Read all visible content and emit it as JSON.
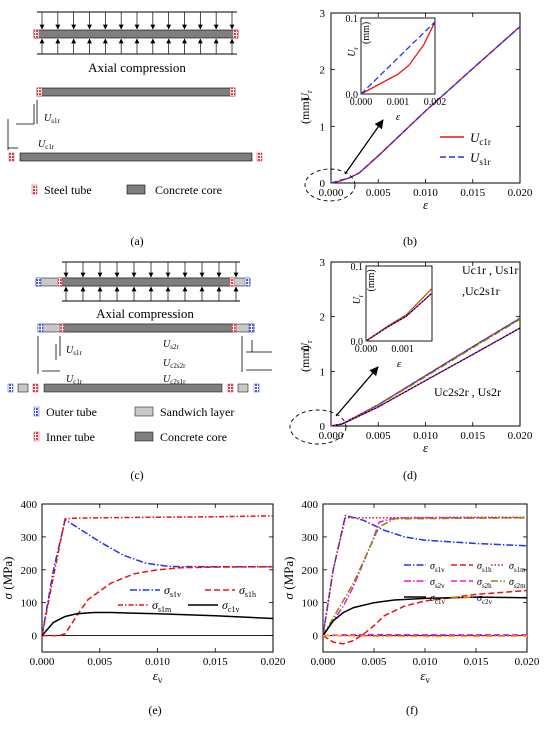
{
  "colors": {
    "steel": "#e33a4a",
    "outer_tube": "#4a5bd6",
    "sandwich": "#c8c8c8",
    "concrete": "#7f7f7f",
    "red": "#ee1111",
    "blue": "#2233ee",
    "magenta": "#ee11ee",
    "olive": "#888800",
    "orange": "#ffaa00",
    "black": "#000000"
  },
  "panel_a": {
    "caption": "(a)",
    "title": "Axial compression",
    "label_s1r": "Us1r",
    "label_c1r": "Uc1r",
    "legend_steel": "Steel tube",
    "legend_concrete": "Concrete core"
  },
  "panel_c": {
    "caption": "(c)",
    "title": "Axial compression",
    "label_s1r": "Us1r",
    "label_c1r": "Uc1r",
    "label_s2r": "Us2r",
    "label_c2s2r": "Uc2s2r",
    "label_c2s1r": "Uc2s1r",
    "legend_outer": "Outer tube",
    "legend_inner": "Inner tube",
    "legend_sandwich": "Sandwich layer",
    "legend_concrete": "Concrete core"
  },
  "chart_data": [
    {
      "id": "b",
      "type": "line",
      "caption": "(b)",
      "xlabel": "ε",
      "ylabel": "Ur (mm)",
      "xlim": [
        0,
        0.02
      ],
      "ylim": [
        0,
        3
      ],
      "xticks": [
        "0.000",
        "0.005",
        "0.010",
        "0.015",
        "0.020"
      ],
      "yticks": [
        "0",
        "1",
        "2",
        "3"
      ],
      "legend": "bottom-right",
      "series": [
        {
          "name": "Uc1r",
          "color": "#ee1111",
          "dash": "solid",
          "x": [
            0,
            0.001,
            0.002,
            0.003,
            0.005,
            0.01,
            0.015,
            0.02
          ],
          "y": [
            0,
            0.035,
            0.095,
            0.18,
            0.48,
            1.27,
            2.02,
            2.76
          ]
        },
        {
          "name": "Us1r",
          "color": "#2233ee",
          "dash": "dashed",
          "x": [
            0,
            0.001,
            0.002,
            0.003,
            0.005,
            0.01,
            0.015,
            0.02
          ],
          "y": [
            0,
            0.048,
            0.095,
            0.18,
            0.48,
            1.27,
            2.02,
            2.76
          ]
        }
      ],
      "inset": {
        "xlabel": "ε",
        "ylabel": "Ur (mm)",
        "xlim": [
          0,
          0.002
        ],
        "ylim": [
          0,
          0.1
        ],
        "xticks": [
          "0.000",
          "0.001",
          "0.002"
        ],
        "yticks": [
          "0.0",
          "0.1"
        ],
        "series": [
          {
            "name": "Uc1r",
            "x": [
              0,
              0.0005,
              0.001,
              0.0013,
              0.0017,
              0.002
            ],
            "y": [
              0,
              0.013,
              0.026,
              0.038,
              0.065,
              0.095
            ]
          },
          {
            "name": "Us1r",
            "x": [
              0,
              0.002
            ],
            "y": [
              0,
              0.095
            ]
          }
        ]
      }
    },
    {
      "id": "d",
      "type": "line",
      "caption": "(d)",
      "xlabel": "ε",
      "ylabel": "Ur (mm)",
      "xlim": [
        0,
        0.02
      ],
      "ylim": [
        0,
        3
      ],
      "xticks": [
        "0.000",
        "0.005",
        "0.010",
        "0.015",
        "0.020"
      ],
      "yticks": [
        "0",
        "1",
        "2",
        "3"
      ],
      "annotation_upper_1": "Uc1r , Us1r",
      "annotation_upper_2": ",Uc2s1r",
      "annotation_lower": "Uc2s2r , Us2r",
      "series": [
        {
          "name": "Uc1r",
          "color": "#ee1111",
          "dash": "solid",
          "x": [
            0,
            0.0012,
            0.005,
            0.01,
            0.015,
            0.02
          ],
          "y": [
            0,
            0.04,
            0.39,
            0.92,
            1.45,
            1.97
          ]
        },
        {
          "name": "Us1r",
          "color": "#2233ee",
          "dash": "dashed",
          "x": [
            0,
            0.0012,
            0.005,
            0.01,
            0.015,
            0.02
          ],
          "y": [
            0,
            0.04,
            0.39,
            0.92,
            1.45,
            1.97
          ]
        },
        {
          "name": "Uc2s1r",
          "color": "#888800",
          "dash": "dashdot",
          "x": [
            0,
            0.0012,
            0.005,
            0.01,
            0.015,
            0.02
          ],
          "y": [
            0,
            0.04,
            0.38,
            0.9,
            1.43,
            1.95
          ]
        },
        {
          "name": "Uc2s2r",
          "color": "#000000",
          "dash": "solid",
          "x": [
            0,
            0.0012,
            0.005,
            0.01,
            0.015,
            0.02
          ],
          "y": [
            0,
            0.036,
            0.35,
            0.83,
            1.31,
            1.79
          ]
        },
        {
          "name": "Us2r",
          "color": "#ee11ee",
          "dash": "dotted",
          "x": [
            0,
            0.0012,
            0.005,
            0.01,
            0.015,
            0.02
          ],
          "y": [
            0,
            0.036,
            0.35,
            0.83,
            1.31,
            1.79
          ]
        }
      ],
      "inset": {
        "xlabel": "ε",
        "ylabel": "Ur (mm)",
        "xlim": [
          0,
          0.0018
        ],
        "ylim": [
          0,
          0.1
        ],
        "xticks": [
          "0.000",
          "0.001"
        ],
        "yticks": [
          "0.0",
          "0.1"
        ],
        "series": [
          {
            "name": "upper",
            "x": [
              0,
              0.0006,
              0.0011,
              0.0018
            ],
            "y": [
              0,
              0.02,
              0.035,
              0.07
            ]
          },
          {
            "name": "lower",
            "x": [
              0,
              0.0006,
              0.0011,
              0.0018
            ],
            "y": [
              0,
              0.019,
              0.033,
              0.064
            ]
          }
        ]
      }
    },
    {
      "id": "e",
      "type": "line",
      "caption": "(e)",
      "xlabel": "εv",
      "ylabel": "σ (MPa)",
      "xlim": [
        0,
        0.02
      ],
      "ylim": [
        -50,
        400
      ],
      "xticks": [
        "0.000",
        "0.005",
        "0.010",
        "0.015",
        "0.020"
      ],
      "yticks": [
        "0",
        "100",
        "200",
        "300",
        "400"
      ],
      "legend": "center-right",
      "series": [
        {
          "name": "σs1v",
          "color": "#2233ee",
          "dash": "dashdot",
          "x": [
            0,
            0.001,
            0.002,
            0.003,
            0.005,
            0.007,
            0.009,
            0.011,
            0.015,
            0.02
          ],
          "y": [
            0,
            200,
            352,
            330,
            285,
            245,
            220,
            210,
            209,
            209
          ]
        },
        {
          "name": "σs1h",
          "color": "#ee1111",
          "dash": "dashed",
          "x": [
            0,
            0.0015,
            0.002,
            0.003,
            0.004,
            0.006,
            0.008,
            0.01,
            0.012,
            0.015,
            0.02
          ],
          "y": [
            0,
            0,
            5,
            60,
            110,
            160,
            188,
            200,
            206,
            208,
            209
          ]
        },
        {
          "name": "σs1m",
          "color": "#ee1111",
          "dash": "dotdash",
          "x": [
            0,
            0.001,
            0.002,
            0.003,
            0.005,
            0.01,
            0.015,
            0.02
          ],
          "y": [
            0,
            180,
            355,
            357,
            358,
            360,
            361,
            364
          ]
        },
        {
          "name": "σc1v",
          "color": "#000000",
          "dash": "solid",
          "x": [
            0,
            0.001,
            0.002,
            0.003,
            0.0045,
            0.006,
            0.01,
            0.015,
            0.02
          ],
          "y": [
            0,
            40,
            58,
            66,
            70,
            70,
            66,
            60,
            52
          ]
        }
      ]
    },
    {
      "id": "f",
      "type": "line",
      "caption": "(f)",
      "xlabel": "εv",
      "ylabel": "σ (MPa)",
      "xlim": [
        0,
        0.02
      ],
      "ylim": [
        -50,
        400
      ],
      "xticks": [
        "0.000",
        "0.005",
        "0.010",
        "0.015",
        "0.020"
      ],
      "yticks": [
        "0",
        "100",
        "200",
        "300",
        "400"
      ],
      "legend": "center-right",
      "series": [
        {
          "name": "σs1v",
          "color": "#2233ee",
          "dash": "dashdot",
          "x": [
            0,
            0.001,
            0.0022,
            0.004,
            0.006,
            0.008,
            0.01,
            0.015,
            0.02
          ],
          "y": [
            0,
            200,
            365,
            350,
            320,
            300,
            290,
            280,
            273
          ]
        },
        {
          "name": "σs1h",
          "color": "#ee1111",
          "dash": "dashed",
          "x": [
            0,
            0.001,
            0.002,
            0.003,
            0.004,
            0.005,
            0.006,
            0.008,
            0.01,
            0.015,
            0.02
          ],
          "y": [
            0,
            -20,
            -25,
            -15,
            5,
            30,
            60,
            90,
            105,
            125,
            137
          ]
        },
        {
          "name": "σs1m",
          "color": "#ee1111",
          "dash": "dotted",
          "x": [
            0,
            0.001,
            0.0022,
            0.005,
            0.01,
            0.015,
            0.02
          ],
          "y": [
            0,
            200,
            358,
            358,
            359,
            360,
            360
          ]
        },
        {
          "name": "σs2v",
          "color": "#ee11ee",
          "dash": "dashdot",
          "x": [
            0,
            0.002,
            0.003,
            0.004,
            0.005,
            0.0055,
            0.007,
            0.01,
            0.02
          ],
          "y": [
            0,
            90,
            150,
            225,
            300,
            345,
            357,
            358,
            358
          ]
        },
        {
          "name": "σs2h",
          "color": "#ee11ee",
          "dash": "dashed",
          "x": [
            0,
            0.002,
            0.005,
            0.01,
            0.02
          ],
          "y": [
            0,
            2,
            3,
            2,
            2
          ]
        },
        {
          "name": "σs2m",
          "color": "#888800",
          "dash": "dashdot",
          "x": [
            0,
            0.003,
            0.0055,
            0.007,
            0.02
          ],
          "y": [
            0,
            160,
            330,
            355,
            358
          ]
        },
        {
          "name": "σc1v",
          "color": "#000000",
          "dash": "solid",
          "x": [
            0,
            0.001,
            0.002,
            0.003,
            0.005,
            0.007,
            0.01,
            0.015,
            0.02
          ],
          "y": [
            0,
            45,
            70,
            85,
            100,
            108,
            113,
            117,
            115
          ]
        },
        {
          "name": "σc2v",
          "color": "#ffaa00",
          "dash": "dashdot",
          "x": [
            0,
            0.005,
            0.01,
            0.02
          ],
          "y": [
            0,
            -2,
            -3,
            -2
          ]
        }
      ]
    }
  ]
}
